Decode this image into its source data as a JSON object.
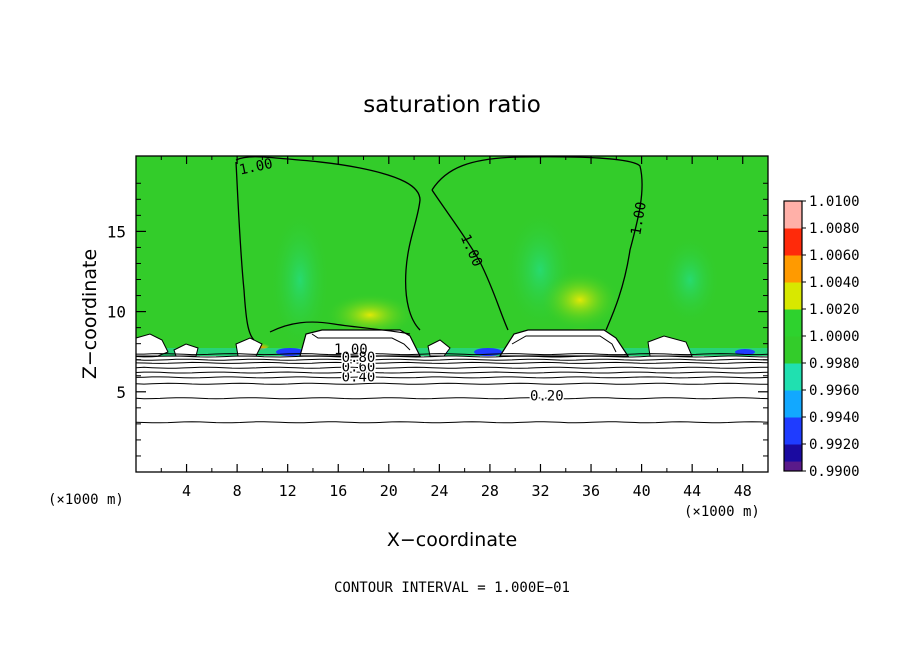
{
  "chart_data": {
    "type": "heatmap",
    "title": "saturation ratio",
    "xlabel": "X−coordinate",
    "ylabel": "Z−coordinate",
    "x_unit_left": "(×1000 m)",
    "x_unit_right": "(×1000 m)",
    "xlim": [
      0,
      50
    ],
    "ylim": [
      0,
      19.7
    ],
    "x_ticks": [
      4,
      8,
      12,
      16,
      20,
      24,
      28,
      32,
      36,
      40,
      44,
      48
    ],
    "y_ticks": [
      5,
      10,
      15
    ],
    "footer": "CONTOUR INTERVAL =  1.000E−01",
    "colorbar": {
      "levels": [
        0.99,
        0.992,
        0.994,
        0.996,
        0.998,
        1.0,
        1.002,
        1.004,
        1.006,
        1.008,
        1.01
      ],
      "labels": [
        "0.9900",
        "0.9920",
        "0.9940",
        "0.9960",
        "0.9980",
        "1.0000",
        "1.0020",
        "1.0040",
        "1.0060",
        "1.0080",
        "1.0100"
      ],
      "colors": [
        "#5a1a8a",
        "#1a0aa0",
        "#1f3cff",
        "#12a8ff",
        "#20e0b0",
        "#33cc2a",
        "#2ed22e",
        "#d8e800",
        "#ff9a00",
        "#ff2a0a",
        "#ffb0a8"
      ]
    },
    "field_color": "#33cc2a",
    "contour_labels": [
      {
        "text": "1.00",
        "x": 9.5,
        "z": 19.0,
        "angle": -12
      },
      {
        "text": "1.00",
        "x": 26.5,
        "z": 13.8,
        "angle": 66
      },
      {
        "text": "1.00",
        "x": 39.8,
        "z": 15.8,
        "angle": -80
      },
      {
        "text": "0.20",
        "x": 32.5,
        "z": 4.7,
        "angle": 0
      },
      {
        "text": "0.40",
        "x": 17.6,
        "z": 5.9,
        "angle": 0
      },
      {
        "text": "0.60",
        "x": 17.6,
        "z": 6.5,
        "angle": 0
      },
      {
        "text": "0.80",
        "x": 17.6,
        "z": 7.1,
        "angle": 0
      },
      {
        "text": "1.00",
        "x": 17.0,
        "z": 7.6,
        "angle": 0
      }
    ],
    "background_contours_z": [
      3.1,
      4.6,
      5.5,
      5.9,
      6.2,
      6.5,
      6.8,
      7.0,
      7.2,
      7.35
    ]
  }
}
